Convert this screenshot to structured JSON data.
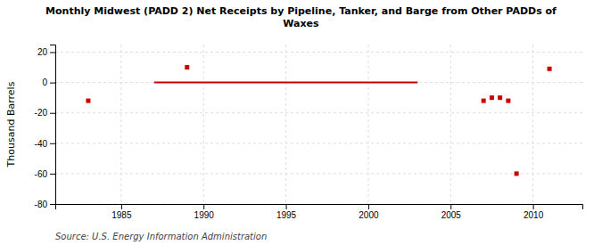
{
  "chart_data": {
    "type": "line",
    "title": "Monthly Midwest (PADD 2) Net Receipts by Pipeline, Tanker, and Barge from Other PADDs of\nWaxes",
    "ylabel": "Thousand Barrels",
    "source": "Source: U.S. Energy Information Administration",
    "series": [
      {
        "type": "line",
        "color": "#cc0000",
        "x": [
          1987,
          2003
        ],
        "values": [
          0,
          0
        ]
      },
      {
        "type": "scatter",
        "color": "#cc0000",
        "marker": "square",
        "x": [
          1983,
          1989,
          2011,
          2007,
          2007.5,
          2008,
          2008.5,
          2009
        ],
        "values": [
          -12,
          10,
          9,
          -12,
          -10,
          -10,
          -12,
          -60
        ]
      }
    ],
    "xlim": [
      1981,
      2013
    ],
    "ylim": [
      -80,
      25
    ],
    "xticks": [
      1985,
      1990,
      1995,
      2000,
      2005,
      2010
    ],
    "yticks": [
      -80,
      -60,
      -40,
      -20,
      0,
      20
    ],
    "grid": true
  }
}
